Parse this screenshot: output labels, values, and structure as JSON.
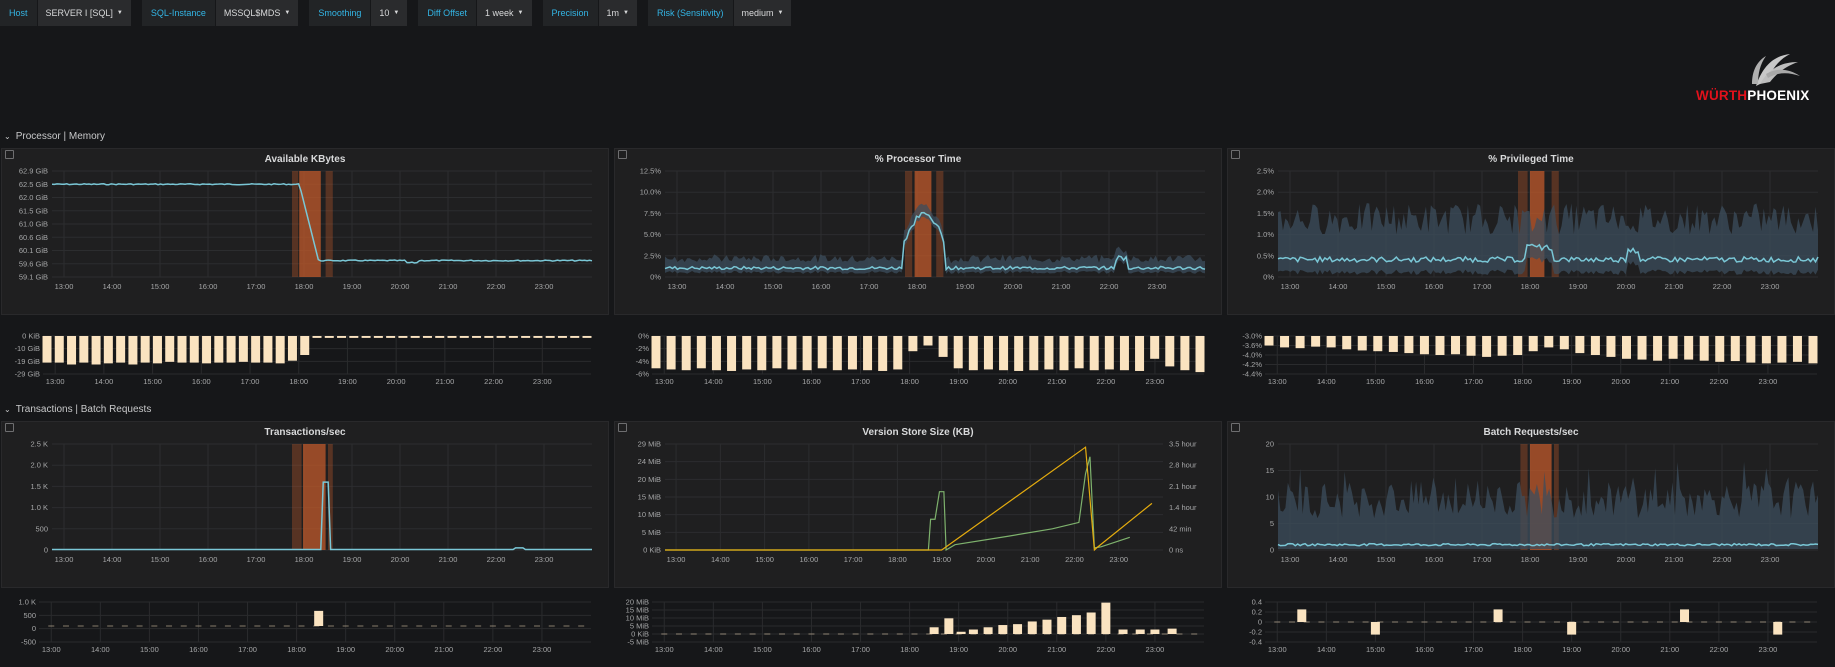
{
  "variables": [
    {
      "label": "Host",
      "value": "SERVER I [SQL]"
    },
    {
      "label": "SQL-Instance",
      "value": "MSSQL$MDS"
    },
    {
      "label": "Smoothing",
      "value": "10"
    },
    {
      "label": "Diff Offset",
      "value": "1 week"
    },
    {
      "label": "Precision",
      "value": "1m"
    },
    {
      "label": "Risk (Sensitivity)",
      "value": "medium"
    }
  ],
  "logo": {
    "part1": "WÜRTH",
    "part2": "PHOENIX"
  },
  "rows": [
    {
      "title": "Processor | Memory"
    },
    {
      "title": "Transactions | Batch Requests"
    }
  ],
  "colors": {
    "bg": "#161719",
    "panel": "#1f1f20",
    "main_line": "#7ac7d6",
    "band": "#3c4d5c",
    "anomaly": "#c0592b",
    "diff_bar": "#fae3c0",
    "accent_text": "#33b5e5",
    "series_green": "#7eb26d",
    "series_yellow": "#e5ac0e"
  },
  "x_ticks": [
    "13:00",
    "14:00",
    "15:00",
    "16:00",
    "17:00",
    "18:00",
    "19:00",
    "20:00",
    "21:00",
    "22:00",
    "23:00"
  ],
  "panels": [
    {
      "title": "Available KBytes",
      "y_ticks": [
        "62.9 GiB",
        "62.5 GiB",
        "62.0 GiB",
        "61.5 GiB",
        "61.0 GiB",
        "60.6 GiB",
        "60.1 GiB",
        "59.6 GiB",
        "59.1 GiB"
      ],
      "diff_ticks": [
        "0 KiB",
        "-10 GiB",
        "-19 GiB",
        "-29 GiB"
      ]
    },
    {
      "title": "% Processor Time",
      "y_ticks": [
        "12.5%",
        "10.0%",
        "7.5%",
        "5.0%",
        "2.5%",
        "0%"
      ],
      "diff_ticks": [
        "0%",
        "-2%",
        "-4%",
        "-6%"
      ]
    },
    {
      "title": "% Privileged Time",
      "y_ticks": [
        "2.5%",
        "2.0%",
        "1.5%",
        "1.0%",
        "0.5%",
        "0%"
      ],
      "diff_ticks": [
        "-3.0%",
        "-3.6%",
        "-4.0%",
        "-4.2%",
        "-4.4%"
      ]
    },
    {
      "title": "Transactions/sec",
      "y_ticks": [
        "2.5 K",
        "2.0 K",
        "1.5 K",
        "1.0 K",
        "500",
        "0"
      ],
      "diff_ticks": [
        "1.0 K",
        "500",
        "0",
        "-500"
      ]
    },
    {
      "title": "Version Store Size (KB)",
      "y_ticks": [
        "29 MiB",
        "24 MiB",
        "20 MiB",
        "15 MiB",
        "10 MiB",
        "5 MiB",
        "0 KiB"
      ],
      "y2_ticks": [
        "3.5 hour",
        "2.8 hour",
        "2.1 hour",
        "1.4 hour",
        "42 min",
        "0 ns"
      ],
      "diff_ticks": [
        "20 MiB",
        "15 MiB",
        "10 MiB",
        "5 MiB",
        "0 KiB",
        "-5 MiB"
      ]
    },
    {
      "title": "Batch Requests/sec",
      "y_ticks": [
        "20",
        "15",
        "10",
        "5",
        "0"
      ],
      "diff_ticks": [
        "0.4",
        "0.2",
        "0",
        "-0.2",
        "-0.4"
      ]
    }
  ]
}
